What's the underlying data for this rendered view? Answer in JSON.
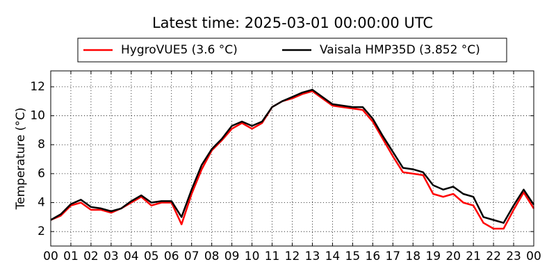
{
  "chart_data": {
    "type": "line",
    "title": "Latest time: 2025-03-01 00:00:00 UTC",
    "y_label": "Temperature (°C)",
    "x": [
      0,
      0.5,
      1,
      1.5,
      2,
      2.5,
      3,
      3.5,
      4,
      4.5,
      5,
      5.5,
      6,
      6.5,
      7,
      7.5,
      8,
      8.5,
      9,
      9.5,
      10,
      10.5,
      11,
      11.5,
      12,
      12.5,
      13,
      13.5,
      14,
      14.5,
      15,
      15.5,
      16,
      16.5,
      17,
      17.5,
      18,
      18.5,
      19,
      19.5,
      20,
      20.5,
      21,
      21.5,
      22,
      22.5,
      23,
      23.5,
      24
    ],
    "series": [
      {
        "name": "HygroVUE5 (3.6 °C)",
        "color": "#ff0000",
        "values": [
          2.8,
          3.1,
          3.8,
          4.0,
          3.5,
          3.5,
          3.3,
          3.6,
          4.0,
          4.4,
          3.8,
          4.0,
          4.0,
          2.5,
          4.6,
          6.3,
          7.6,
          8.3,
          9.1,
          9.5,
          9.1,
          9.5,
          10.6,
          11.0,
          11.2,
          11.5,
          11.7,
          11.2,
          10.7,
          10.6,
          10.5,
          10.4,
          9.6,
          8.4,
          7.2,
          6.1,
          6.0,
          5.9,
          4.6,
          4.4,
          4.6,
          4.0,
          3.8,
          2.6,
          2.2,
          2.2,
          3.5,
          4.7,
          3.6
        ]
      },
      {
        "name": "Vaisala HMP35D (3.852 °C)",
        "color": "#000000",
        "values": [
          2.8,
          3.2,
          3.9,
          4.2,
          3.7,
          3.6,
          3.4,
          3.6,
          4.1,
          4.5,
          4.0,
          4.1,
          4.1,
          3.0,
          4.9,
          6.6,
          7.7,
          8.4,
          9.3,
          9.6,
          9.3,
          9.6,
          10.6,
          11.0,
          11.3,
          11.6,
          11.8,
          11.3,
          10.8,
          10.7,
          10.6,
          10.6,
          9.8,
          8.6,
          7.5,
          6.4,
          6.3,
          6.1,
          5.2,
          4.9,
          5.1,
          4.6,
          4.4,
          3.0,
          2.8,
          2.6,
          3.8,
          4.9,
          3.85
        ]
      }
    ],
    "xlim": [
      0,
      24
    ],
    "xticks": [
      {
        "value": 0,
        "label": "00"
      },
      {
        "value": 1,
        "label": "01"
      },
      {
        "value": 2,
        "label": "02"
      },
      {
        "value": 3,
        "label": "03"
      },
      {
        "value": 4,
        "label": "04"
      },
      {
        "value": 5,
        "label": "05"
      },
      {
        "value": 6,
        "label": "06"
      },
      {
        "value": 7,
        "label": "07"
      },
      {
        "value": 8,
        "label": "08"
      },
      {
        "value": 9,
        "label": "09"
      },
      {
        "value": 10,
        "label": "10"
      },
      {
        "value": 11,
        "label": "11"
      },
      {
        "value": 12,
        "label": "12"
      },
      {
        "value": 13,
        "label": "13"
      },
      {
        "value": 14,
        "label": "14"
      },
      {
        "value": 15,
        "label": "15"
      },
      {
        "value": 16,
        "label": "16"
      },
      {
        "value": 17,
        "label": "17"
      },
      {
        "value": 18,
        "label": "18"
      },
      {
        "value": 19,
        "label": "19"
      },
      {
        "value": 20,
        "label": "20"
      },
      {
        "value": 21,
        "label": "21"
      },
      {
        "value": 22,
        "label": "22"
      },
      {
        "value": 23,
        "label": "23"
      },
      {
        "value": 24,
        "label": "00"
      }
    ],
    "ylim": [
      1,
      13.1
    ],
    "yticks": [
      2,
      4,
      6,
      8,
      10,
      12
    ],
    "grid": true,
    "legend": "top"
  }
}
